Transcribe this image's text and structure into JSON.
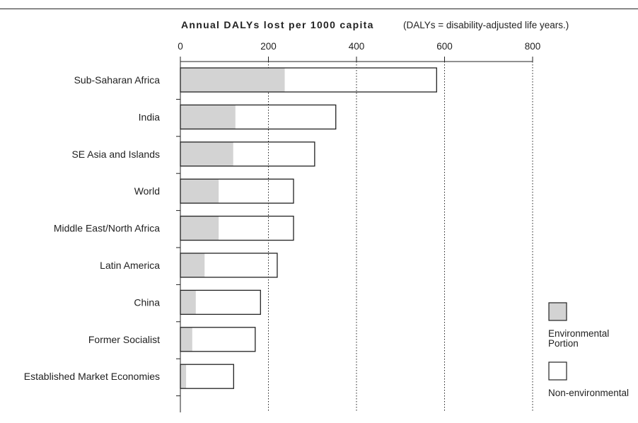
{
  "chart_data": {
    "type": "bar",
    "orientation": "horizontal",
    "stacked": true,
    "title": "Annual DALYs lost per 1000 capita",
    "subtitle": "(DALYs = disability-adjusted life years.)",
    "xlim": [
      0,
      800
    ],
    "xticks": [
      0,
      200,
      400,
      600,
      800
    ],
    "grid": "vertical dotted at 200, 400, 600, 800",
    "legend_position": "right",
    "categories": [
      "Sub-Saharan Africa",
      "India",
      "SE Asia and Islands",
      "World",
      "Middle East/North Africa",
      "Latin America",
      "China",
      "Former Socialist",
      "Established Market Economies"
    ],
    "series": [
      {
        "name": "Environmental Portion",
        "color": "#d3d3d3",
        "values": [
          237,
          125,
          120,
          87,
          87,
          55,
          35,
          27,
          13
        ]
      },
      {
        "name": "Non-environmental",
        "color": "#ffffff",
        "values": [
          345,
          228,
          185,
          170,
          170,
          165,
          147,
          143,
          108
        ]
      }
    ],
    "totals": [
      582,
      353,
      305,
      257,
      257,
      220,
      182,
      170,
      121
    ],
    "legend": [
      {
        "lines": [
          "Environmental",
          "Portion"
        ],
        "color": "#d3d3d3"
      },
      {
        "lines": [
          "Non-environmental"
        ],
        "color": "#ffffff"
      }
    ]
  }
}
